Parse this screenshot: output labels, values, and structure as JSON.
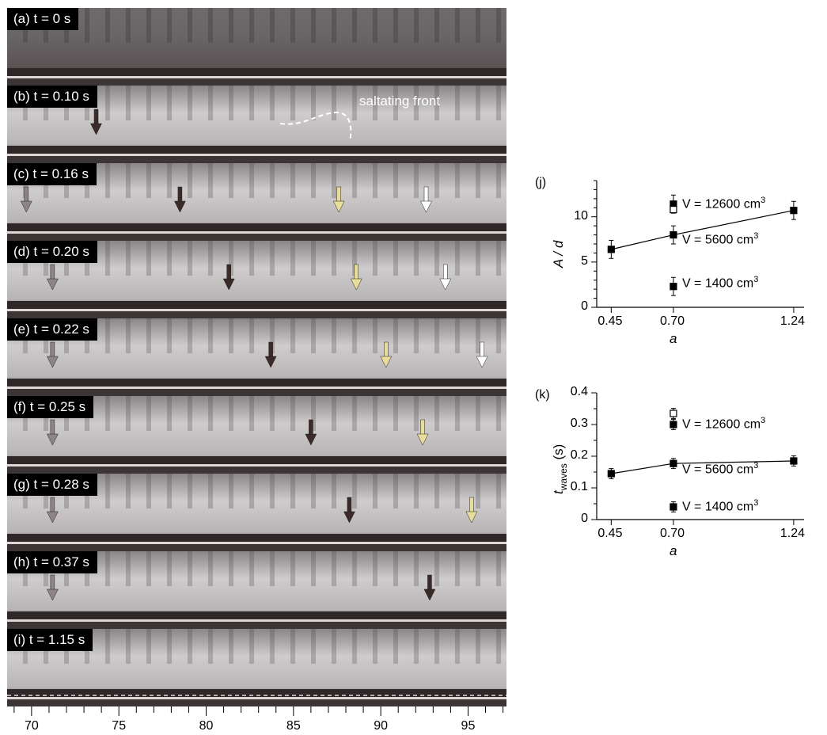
{
  "photo_panels": [
    {
      "label": "(a) t = 0 s",
      "arrows": []
    },
    {
      "label": "(b) t = 0.10 s",
      "annotation": "saltating front",
      "arrows": [
        {
          "x": 73.7,
          "color": "#3a2a28"
        }
      ]
    },
    {
      "label": "(c) t = 0.16 s",
      "arrows": [
        {
          "x": 69.7,
          "color": "#8d8486"
        },
        {
          "x": 78.5,
          "color": "#3a2a28"
        },
        {
          "x": 87.6,
          "color": "#e8dc9a"
        },
        {
          "x": 92.6,
          "color": "#ffffff"
        }
      ]
    },
    {
      "label": "(d) t = 0.20 s",
      "arrows": [
        {
          "x": 71.2,
          "color": "#8d8486"
        },
        {
          "x": 81.3,
          "color": "#3a2a28"
        },
        {
          "x": 88.6,
          "color": "#e8dc9a"
        },
        {
          "x": 93.7,
          "color": "#ffffff"
        }
      ]
    },
    {
      "label": "(e) t = 0.22 s",
      "arrows": [
        {
          "x": 71.2,
          "color": "#8d8486"
        },
        {
          "x": 83.7,
          "color": "#3a2a28"
        },
        {
          "x": 90.3,
          "color": "#e8dc9a"
        },
        {
          "x": 95.8,
          "color": "#ffffff"
        }
      ]
    },
    {
      "label": "(f) t = 0.25 s",
      "arrows": [
        {
          "x": 71.2,
          "color": "#8d8486"
        },
        {
          "x": 86.0,
          "color": "#3a2a28"
        },
        {
          "x": 92.4,
          "color": "#e8dc9a"
        }
      ]
    },
    {
      "label": "(g) t = 0.28 s",
      "arrows": [
        {
          "x": 71.2,
          "color": "#8d8486"
        },
        {
          "x": 88.2,
          "color": "#3a2a28"
        },
        {
          "x": 95.2,
          "color": "#e8dc9a"
        }
      ]
    },
    {
      "label": "(h) t = 0.37 s",
      "arrows": [
        {
          "x": 71.2,
          "color": "#8d8486"
        },
        {
          "x": 92.8,
          "color": "#3a2a28"
        }
      ]
    },
    {
      "label": "(i) t = 1.15 s",
      "arrows": []
    }
  ],
  "position_axis": {
    "min": 68.6,
    "max": 97.2,
    "ticks": [
      70,
      75,
      80,
      85,
      90,
      95
    ]
  },
  "chart_data": [
    {
      "type": "scatter",
      "panel_tag": "(j)",
      "ylabel": "A / d",
      "xlabel": "a",
      "x_ticks": [
        "0.45",
        "0.70",
        "1.24"
      ],
      "y_ticks": [
        0,
        5,
        10
      ],
      "ylim": [
        0,
        14
      ],
      "fit_line": [
        {
          "a": "0.45",
          "y": 6.4
        },
        {
          "a": "0.70",
          "y": 8.0
        },
        {
          "a": "1.24",
          "y": 10.7
        }
      ],
      "points": [
        {
          "a": "0.45",
          "y": 6.4,
          "err": 1.0,
          "filled": true
        },
        {
          "a": "0.70",
          "y": 8.0,
          "err": 1.0,
          "filled": true
        },
        {
          "a": "1.24",
          "y": 10.7,
          "err": 1.0,
          "filled": true
        },
        {
          "a": "0.70",
          "y": 11.4,
          "err": 1.0,
          "filled": true
        },
        {
          "a": "0.70",
          "y": 10.8,
          "err": 0,
          "filled": false
        },
        {
          "a": "0.70",
          "y": 2.3,
          "err": 1.0,
          "filled": true
        }
      ],
      "volume_labels": [
        {
          "text": "V = 12600 cm",
          "sup": "3",
          "y": 11.4
        },
        {
          "text": "V = 5600 cm",
          "sup": "3",
          "y": 7.4
        },
        {
          "text": "V = 1400 cm",
          "sup": "3",
          "y": 2.6
        }
      ]
    },
    {
      "type": "scatter",
      "panel_tag": "(k)",
      "ylabel": "t",
      "ylabel_sub": "waves",
      "ylabel_unit": "(s)",
      "xlabel": "a",
      "x_ticks": [
        "0.45",
        "0.70",
        "1.24"
      ],
      "y_ticks": [
        0,
        0.1,
        0.2,
        0.3,
        0.4
      ],
      "ylim": [
        0,
        0.4
      ],
      "fit_line": [
        {
          "a": "0.45",
          "y": 0.145
        },
        {
          "a": "0.70",
          "y": 0.177
        },
        {
          "a": "1.24",
          "y": 0.185
        }
      ],
      "points": [
        {
          "a": "0.45",
          "y": 0.145,
          "err": 0.016,
          "filled": true
        },
        {
          "a": "0.70",
          "y": 0.177,
          "err": 0.016,
          "filled": true
        },
        {
          "a": "1.24",
          "y": 0.185,
          "err": 0.016,
          "filled": true
        },
        {
          "a": "0.70",
          "y": 0.3,
          "err": 0.016,
          "filled": true
        },
        {
          "a": "0.70",
          "y": 0.335,
          "err": 0.016,
          "filled": false
        },
        {
          "a": "0.70",
          "y": 0.04,
          "err": 0.016,
          "filled": true
        }
      ],
      "volume_labels": [
        {
          "text": "V = 12600 cm",
          "sup": "3",
          "y": 0.3
        },
        {
          "text": "V = 5600 cm",
          "sup": "3",
          "y": 0.158
        },
        {
          "text": "V = 1400 cm",
          "sup": "3",
          "y": 0.04
        }
      ]
    }
  ]
}
